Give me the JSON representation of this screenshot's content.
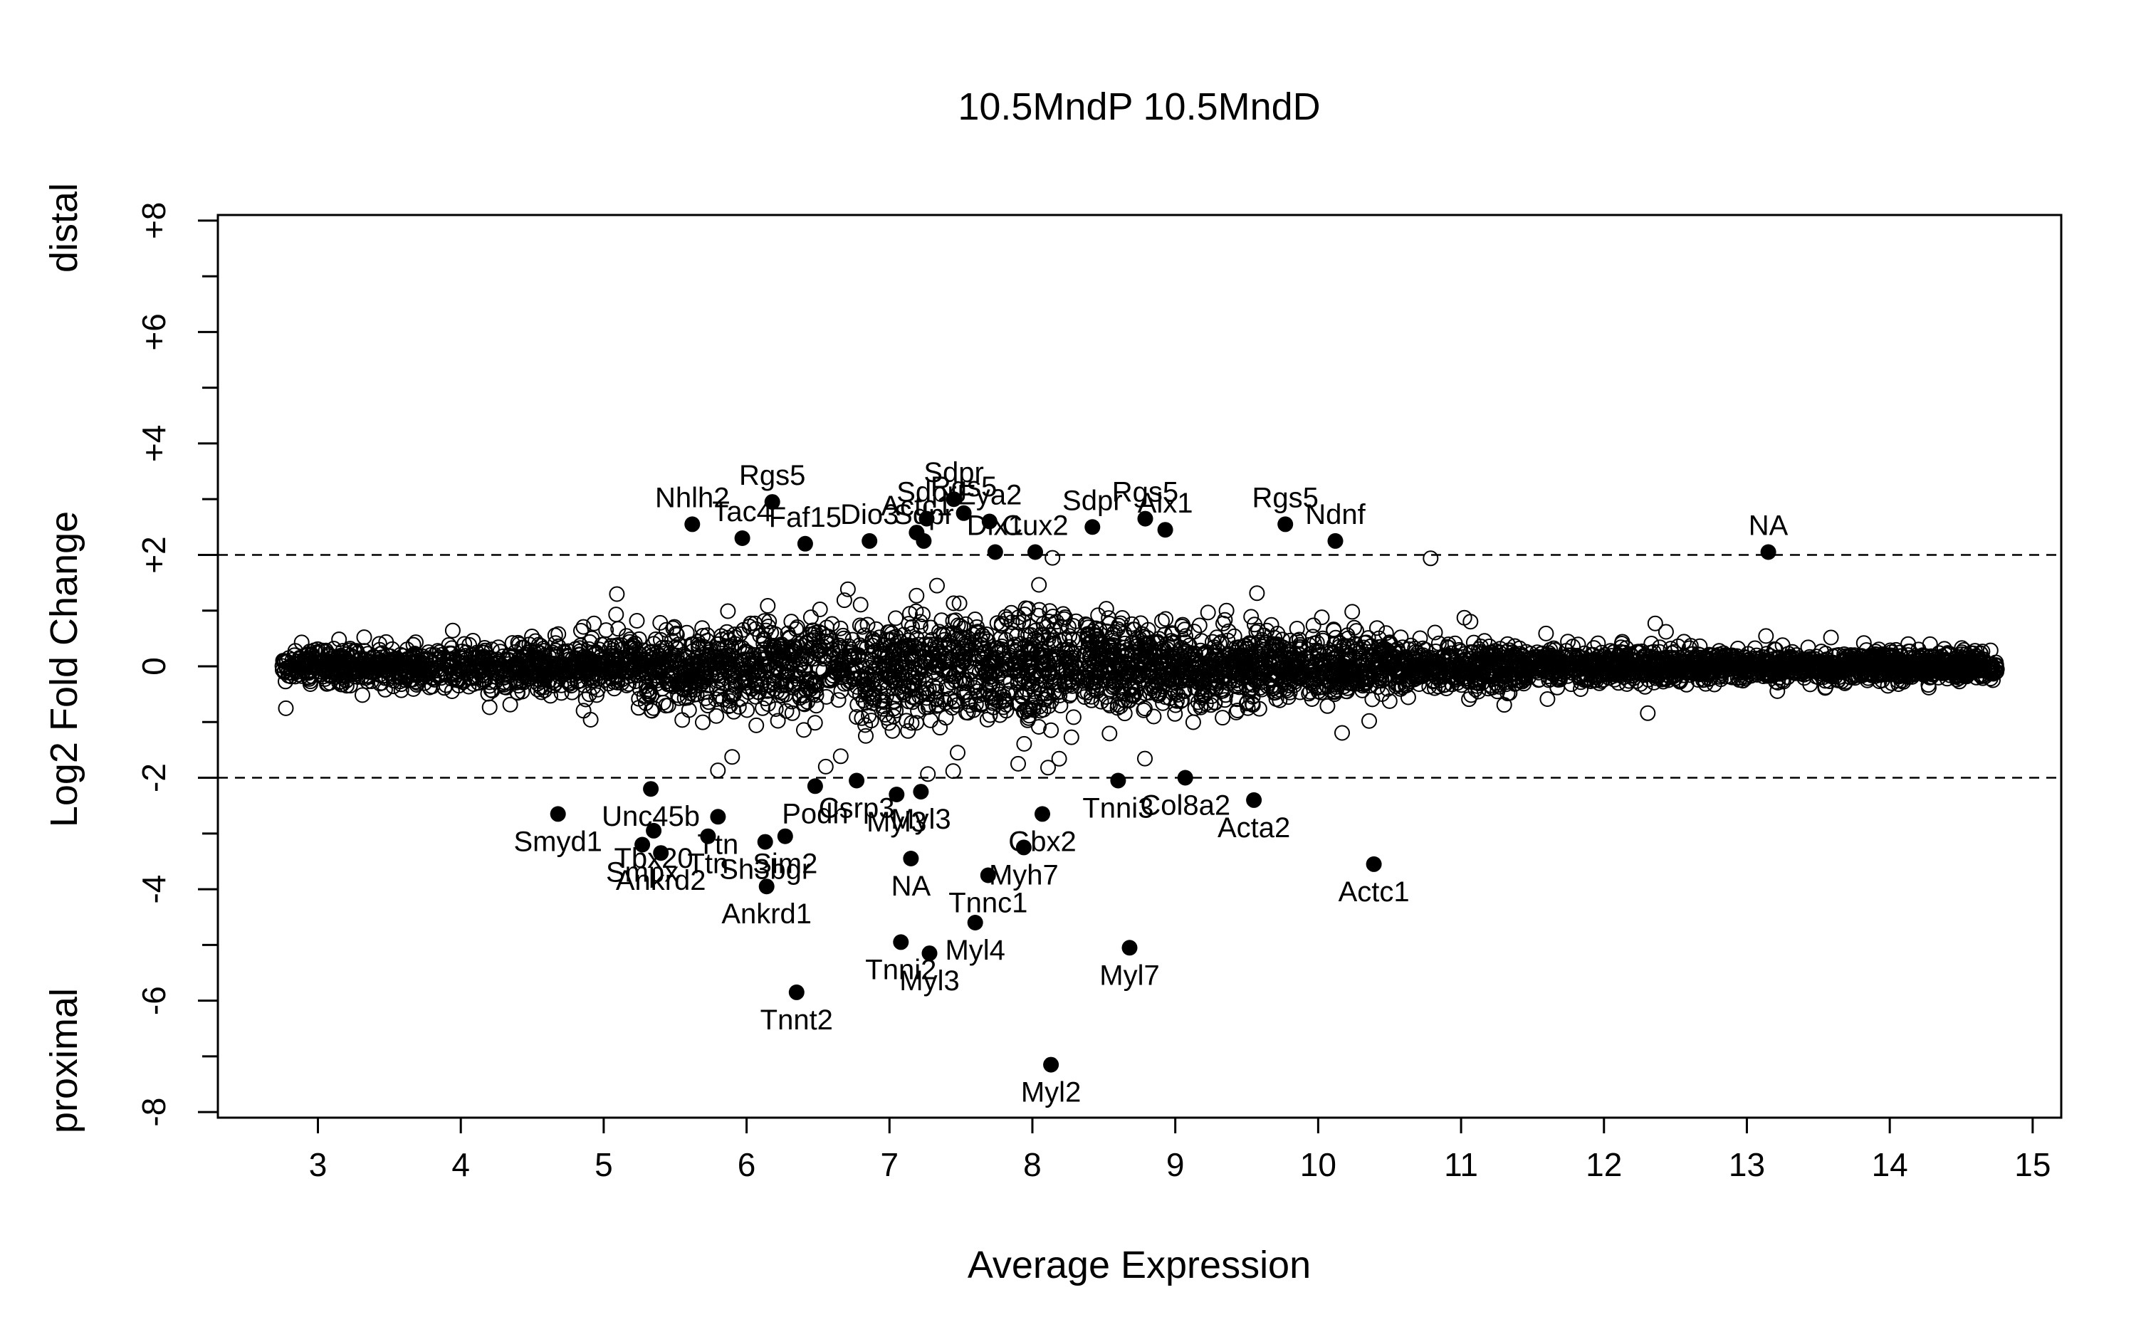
{
  "chart_data": {
    "type": "scatter",
    "title": "10.5MndP 10.5MndD",
    "xlabel": "Average Expression",
    "ylabel": "Log2 Fold Change",
    "side_label_top": "distal",
    "side_label_bottom": "proximal",
    "xlim": [
      2.3,
      15.2
    ],
    "ylim": [
      -8.1,
      8.1
    ],
    "x_ticks": [
      3,
      4,
      5,
      6,
      7,
      8,
      9,
      10,
      11,
      12,
      13,
      14,
      15
    ],
    "x_tick_labels": [
      "3",
      "4",
      "5",
      "6",
      "7",
      "8",
      "9",
      "10",
      "11",
      "12",
      "13",
      "14",
      "15"
    ],
    "y_ticks_major": [
      8,
      6,
      4,
      2,
      0,
      -2,
      -4,
      -6,
      -8
    ],
    "y_tick_labels": [
      "+8",
      "+6",
      "+4",
      "+2",
      "0",
      "-2",
      "-4",
      "-6",
      "-8"
    ],
    "y_ticks_minor": [
      7,
      5,
      3,
      1,
      -1,
      -3,
      -5,
      -7
    ],
    "thresholds": [
      2,
      -2
    ],
    "grid": false,
    "background_cloud": {
      "x_range": [
        2.75,
        14.75
      ],
      "marker": "open-circle"
    },
    "highlighted_points": [
      {
        "label": "Nhlh2",
        "x": 5.62,
        "y": 2.55
      },
      {
        "label": "Rgs5",
        "x": 6.18,
        "y": 2.95
      },
      {
        "label": "Tac4",
        "x": 5.97,
        "y": 2.3
      },
      {
        "label": "Faf15",
        "x": 6.41,
        "y": 2.2
      },
      {
        "label": "Dio3",
        "x": 6.86,
        "y": 2.25
      },
      {
        "label": "Actc1",
        "x": 7.19,
        "y": 2.4
      },
      {
        "label": "Sdpr",
        "x": 7.24,
        "y": 2.25
      },
      {
        "label": "Sdpr",
        "x": 7.26,
        "y": 2.65
      },
      {
        "label": "Sdpr",
        "x": 7.45,
        "y": 3.0
      },
      {
        "label": "Rgs5",
        "x": 7.52,
        "y": 2.75
      },
      {
        "label": "Eya2",
        "x": 7.7,
        "y": 2.6
      },
      {
        "label": "Dlx1",
        "x": 7.74,
        "y": 2.05
      },
      {
        "label": "Cux2",
        "x": 8.02,
        "y": 2.05
      },
      {
        "label": "Sdpr",
        "x": 8.42,
        "y": 2.5
      },
      {
        "label": "Rgs5",
        "x": 8.79,
        "y": 2.65
      },
      {
        "label": "Alx1",
        "x": 8.93,
        "y": 2.45
      },
      {
        "label": "Rgs5",
        "x": 9.77,
        "y": 2.55
      },
      {
        "label": "Ndnf",
        "x": 10.12,
        "y": 2.25
      },
      {
        "label": "NA",
        "x": 13.15,
        "y": 2.05
      },
      {
        "label": "Smyd1",
        "x": 4.68,
        "y": -2.65
      },
      {
        "label": "Unc45b",
        "x": 5.33,
        "y": -2.2
      },
      {
        "label": "Tbx20",
        "x": 5.35,
        "y": -2.95
      },
      {
        "label": "Smpx",
        "x": 5.27,
        "y": -3.2
      },
      {
        "label": "Ankrd2",
        "x": 5.4,
        "y": -3.35
      },
      {
        "label": "Ttn",
        "x": 5.8,
        "y": -2.7
      },
      {
        "label": "Ttn",
        "x": 5.73,
        "y": -3.05
      },
      {
        "label": "Sh3bgr",
        "x": 6.13,
        "y": -3.15
      },
      {
        "label": "Ankrd1",
        "x": 6.14,
        "y": -3.95
      },
      {
        "label": "Sim2",
        "x": 6.27,
        "y": -3.05
      },
      {
        "label": "Podh",
        "x": 6.48,
        "y": -2.15
      },
      {
        "label": "Csrp3",
        "x": 6.77,
        "y": -2.05
      },
      {
        "label": "Myl3",
        "x": 7.05,
        "y": -2.3
      },
      {
        "label": "Myl3",
        "x": 7.22,
        "y": -2.25
      },
      {
        "label": "NA",
        "x": 7.15,
        "y": -3.45
      },
      {
        "label": "Gbx2",
        "x": 8.07,
        "y": -2.65
      },
      {
        "label": "Myh7",
        "x": 7.94,
        "y": -3.25
      },
      {
        "label": "Tnnc1",
        "x": 7.69,
        "y": -3.75
      },
      {
        "label": "Myl4",
        "x": 7.6,
        "y": -4.6
      },
      {
        "label": "Tnni2",
        "x": 7.08,
        "y": -4.95
      },
      {
        "label": "Myl3",
        "x": 7.28,
        "y": -5.15
      },
      {
        "label": "Tnnt2",
        "x": 6.35,
        "y": -5.85
      },
      {
        "label": "Myl7",
        "x": 8.68,
        "y": -5.05
      },
      {
        "label": "Myl2",
        "x": 8.13,
        "y": -7.15
      },
      {
        "label": "Tnni3",
        "x": 8.6,
        "y": -2.05
      },
      {
        "label": "Col8a2",
        "x": 9.07,
        "y": -2.0
      },
      {
        "label": "Acta2",
        "x": 9.55,
        "y": -2.4
      },
      {
        "label": "Actc1",
        "x": 10.39,
        "y": -3.55
      }
    ]
  }
}
